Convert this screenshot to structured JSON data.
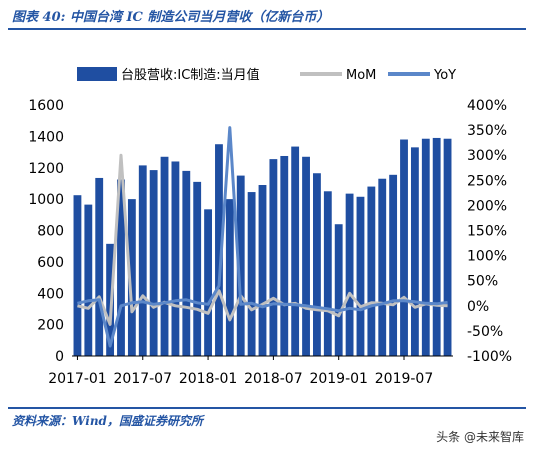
{
  "header": {
    "title": "图表 40:  中国台湾 IC 制造公司当月营收（亿新台币）"
  },
  "footer": {
    "source": "资料来源：Wind，国盛证券研究所",
    "watermark": "头条 @未来智库"
  },
  "colors": {
    "bar": "#1f4ea1",
    "mom": "#c0c0c0",
    "yoy": "#5b87c9",
    "accent": "#2455a4"
  },
  "chart_data": {
    "type": "bar",
    "categories": [
      "2017-01",
      "2017-02",
      "2017-03",
      "2017-04",
      "2017-05",
      "2017-06",
      "2017-07",
      "2017-08",
      "2017-09",
      "2017-10",
      "2017-11",
      "2017-12",
      "2018-01",
      "2018-02",
      "2018-03",
      "2018-04",
      "2018-05",
      "2018-06",
      "2018-07",
      "2018-08",
      "2018-09",
      "2018-10",
      "2018-11",
      "2018-12",
      "2019-01",
      "2019-02",
      "2019-03",
      "2019-04",
      "2019-05",
      "2019-06",
      "2019-07",
      "2019-08",
      "2019-09",
      "2019-10",
      "2019-11"
    ],
    "x_tick_labels": [
      "2017-01",
      "2017-07",
      "2018-01",
      "2018-07",
      "2019-01",
      "2019-07"
    ],
    "series": [
      {
        "name": "台股营收:IC制造:当月值",
        "type": "bar",
        "axis": "left",
        "values": [
          1025,
          965,
          1135,
          715,
          1125,
          1000,
          1215,
          1185,
          1270,
          1240,
          1180,
          1110,
          935,
          1350,
          1000,
          1150,
          1045,
          1090,
          1255,
          1275,
          1335,
          1270,
          1165,
          1050,
          840,
          1035,
          1015,
          1080,
          1130,
          1155,
          1380,
          1330,
          1385,
          1390,
          1385
        ]
      },
      {
        "name": "MoM",
        "type": "line",
        "axis": "right",
        "values": [
          0,
          -5,
          18,
          -37,
          300,
          -12,
          20,
          -3,
          7,
          0,
          -3,
          -7,
          -15,
          30,
          -28,
          20,
          -8,
          3,
          15,
          2,
          5,
          -5,
          -8,
          -10,
          -20,
          25,
          -2,
          6,
          5,
          2,
          17,
          -3,
          4,
          1,
          0
        ]
      },
      {
        "name": "YoY",
        "type": "line",
        "axis": "right",
        "values": [
          5,
          10,
          12,
          -80,
          0,
          6,
          8,
          3,
          6,
          10,
          12,
          6,
          3,
          40,
          355,
          3,
          5,
          -2,
          4,
          3,
          2,
          0,
          -3,
          -6,
          -10,
          -5,
          -8,
          0,
          4,
          10,
          10,
          8,
          5,
          4,
          7
        ]
      }
    ],
    "ylim_left": [
      0,
      1600
    ],
    "yticks_left": [
      "0",
      "200",
      "400",
      "600",
      "800",
      "1000",
      "1200",
      "1400",
      "1600"
    ],
    "ylim_right": [
      -100,
      400
    ],
    "yticks_right": [
      "-100%",
      "-50%",
      "0%",
      "50%",
      "100%",
      "150%",
      "200%",
      "250%",
      "300%",
      "350%",
      "400%"
    ],
    "legend_position": "top"
  }
}
